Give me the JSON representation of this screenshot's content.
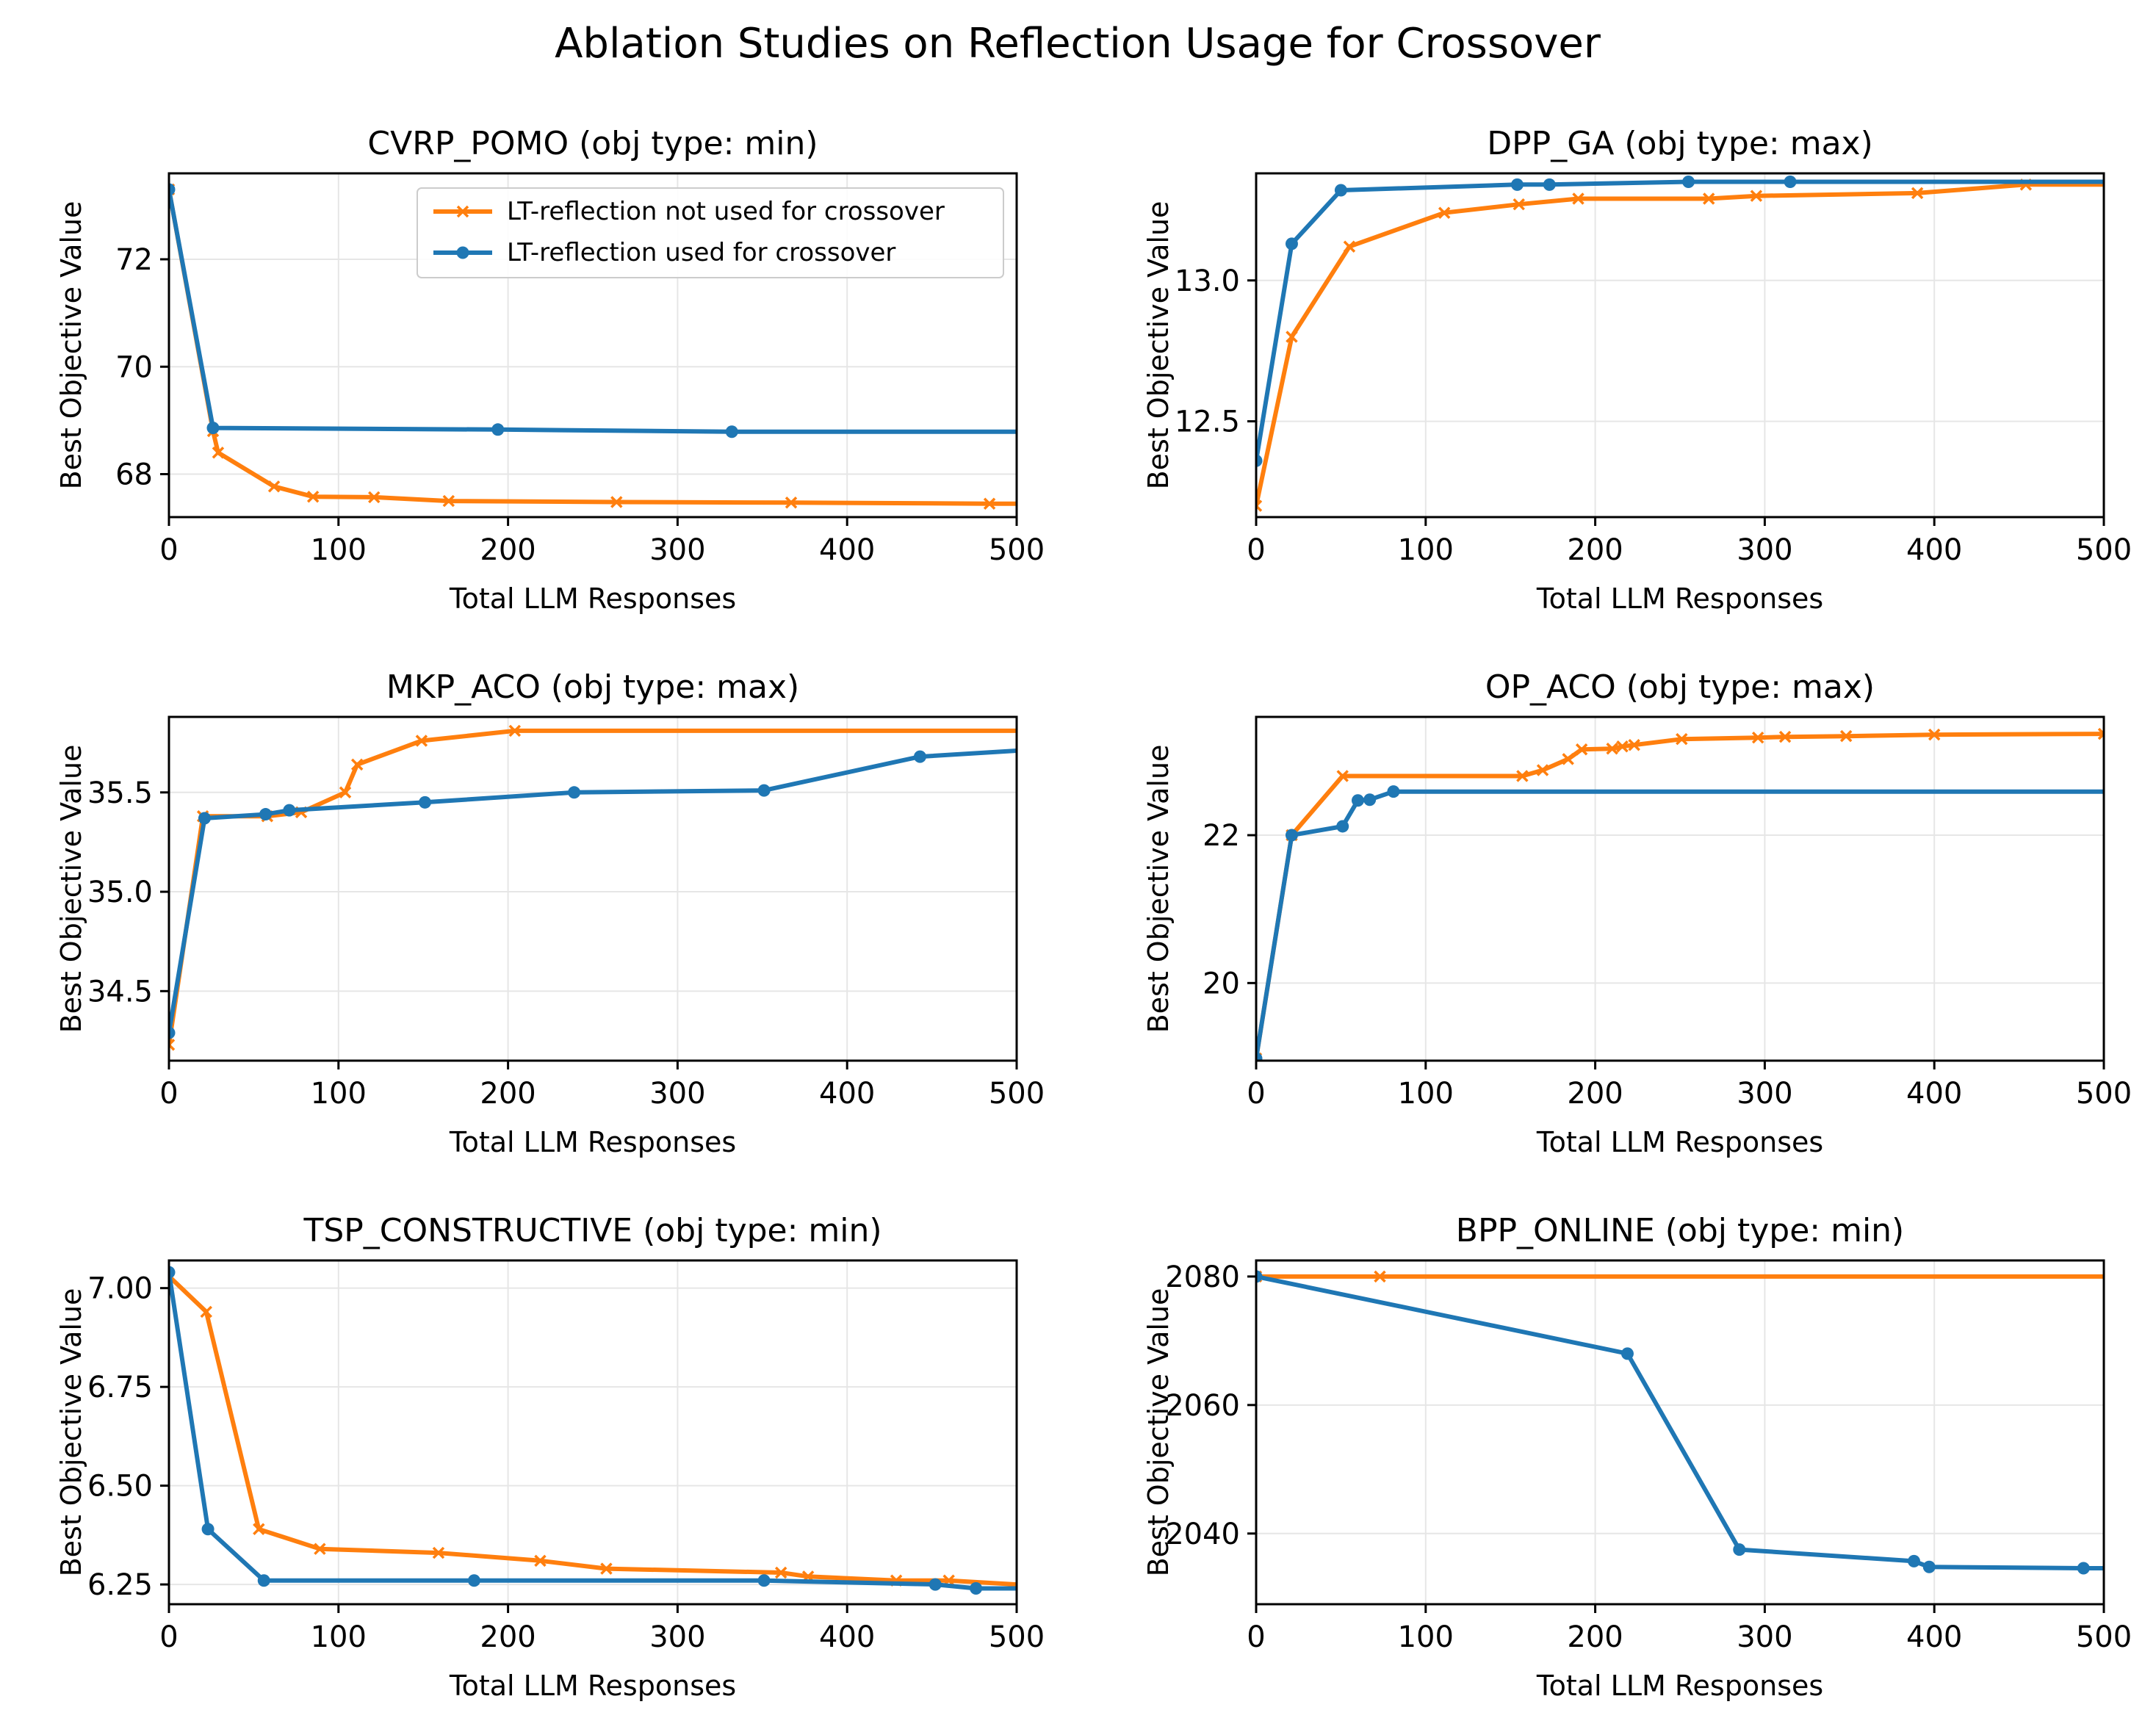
{
  "figure": {
    "title": "Ablation Studies on Reflection Usage for Crossover",
    "legend": {
      "placement": "upper-right of first panel",
      "entries": [
        {
          "label": "LT-reflection not used for crossover",
          "color": "#ff7f0e",
          "marker": "x"
        },
        {
          "label": "LT-reflection used for crossover",
          "color": "#1f77b4",
          "marker": "o"
        }
      ]
    },
    "colors": {
      "not_used": "#ff7f0e",
      "used": "#1f77b4",
      "grid": "#e6e6e6"
    }
  },
  "chart_data": [
    {
      "type": "line",
      "title": "CVRP_POMO (obj type: min)",
      "xlabel": "Total LLM Responses",
      "ylabel": "Best Objective Value",
      "xlim": [
        0,
        500
      ],
      "ylim": [
        67.2,
        73.6
      ],
      "xticks": [
        0,
        100,
        200,
        300,
        400,
        500
      ],
      "yticks": [
        68,
        70,
        72
      ],
      "ytick_labels": [
        "68",
        "70",
        "72"
      ],
      "grid": true,
      "series": [
        {
          "name": "LT-reflection not used for crossover",
          "color": "#ff7f0e",
          "marker": "x",
          "x": [
            0,
            26,
            29,
            62,
            85,
            121,
            165,
            264,
            367,
            484,
            500
          ],
          "y": [
            73.3,
            68.8,
            68.4,
            67.77,
            67.58,
            67.57,
            67.5,
            67.48,
            67.47,
            67.45,
            67.45
          ],
          "markers_x": [
            0,
            26,
            29,
            62,
            85,
            121,
            165,
            264,
            367,
            484
          ]
        },
        {
          "name": "LT-reflection used for crossover",
          "color": "#1f77b4",
          "marker": "o",
          "x": [
            0,
            26,
            194,
            332,
            500
          ],
          "y": [
            73.3,
            68.86,
            68.83,
            68.79,
            68.79
          ],
          "markers_x": [
            0,
            26,
            194,
            332
          ]
        }
      ]
    },
    {
      "type": "line",
      "title": "DPP_GA (obj type: max)",
      "xlabel": "Total LLM Responses",
      "ylabel": "Best Objective Value",
      "xlim": [
        0,
        500
      ],
      "ylim": [
        12.16,
        13.38
      ],
      "xticks": [
        0,
        100,
        200,
        300,
        400,
        500
      ],
      "yticks": [
        12.5,
        13.0
      ],
      "ytick_labels": [
        "12.5",
        "13.0"
      ],
      "grid": true,
      "series": [
        {
          "name": "LT-reflection not used for crossover",
          "color": "#ff7f0e",
          "marker": "x",
          "x": [
            0,
            21,
            55,
            111,
            155,
            190,
            267,
            295,
            390,
            454,
            500
          ],
          "y": [
            12.2,
            12.8,
            13.12,
            13.24,
            13.27,
            13.29,
            13.29,
            13.3,
            13.31,
            13.34,
            13.34
          ],
          "markers_x": [
            0,
            21,
            55,
            111,
            155,
            190,
            267,
            295,
            390,
            454
          ]
        },
        {
          "name": "LT-reflection used for crossover",
          "color": "#1f77b4",
          "marker": "o",
          "x": [
            0,
            21,
            50,
            154,
            173,
            255,
            315,
            500
          ],
          "y": [
            12.36,
            13.13,
            13.32,
            13.34,
            13.34,
            13.35,
            13.35,
            13.35
          ],
          "markers_x": [
            0,
            21,
            50,
            154,
            173,
            255,
            315
          ]
        }
      ]
    },
    {
      "type": "line",
      "title": "MKP_ACO (obj type: max)",
      "xlabel": "Total LLM Responses",
      "ylabel": "Best Objective Value",
      "xlim": [
        0,
        500
      ],
      "ylim": [
        34.15,
        35.88
      ],
      "xticks": [
        0,
        100,
        200,
        300,
        400,
        500
      ],
      "yticks": [
        34.5,
        35.0,
        35.5
      ],
      "ytick_labels": [
        "34.5",
        "35.0",
        "35.5"
      ],
      "grid": true,
      "series": [
        {
          "name": "LT-reflection not used for crossover",
          "color": "#ff7f0e",
          "marker": "x",
          "x": [
            0,
            20,
            58,
            78,
            104,
            111,
            149,
            204,
            500
          ],
          "y": [
            34.23,
            35.38,
            35.38,
            35.4,
            35.5,
            35.64,
            35.76,
            35.81,
            35.81
          ],
          "markers_x": [
            0,
            20,
            58,
            78,
            104,
            111,
            149,
            204
          ]
        },
        {
          "name": "LT-reflection used for crossover",
          "color": "#1f77b4",
          "marker": "o",
          "x": [
            0,
            21,
            57,
            71,
            151,
            239,
            351,
            443,
            500
          ],
          "y": [
            34.29,
            35.37,
            35.39,
            35.41,
            35.45,
            35.5,
            35.51,
            35.68,
            35.71
          ],
          "markers_x": [
            0,
            21,
            57,
            71,
            151,
            239,
            351,
            443
          ]
        }
      ]
    },
    {
      "type": "line",
      "title": "OP_ACO (obj type: max)",
      "xlabel": "Total LLM Responses",
      "ylabel": "Best Objective Value",
      "xlim": [
        0,
        500
      ],
      "ylim": [
        18.95,
        23.6
      ],
      "xticks": [
        0,
        100,
        200,
        300,
        400,
        500
      ],
      "yticks": [
        20,
        22
      ],
      "ytick_labels": [
        "20",
        "22"
      ],
      "grid": true,
      "series": [
        {
          "name": "LT-reflection not used for crossover",
          "color": "#ff7f0e",
          "marker": "x",
          "x": [
            0,
            21,
            51,
            157,
            169,
            184,
            192,
            210,
            216,
            223,
            251,
            296,
            312,
            348,
            400,
            500
          ],
          "y": [
            18.98,
            22.0,
            22.8,
            22.8,
            22.88,
            23.03,
            23.16,
            23.17,
            23.2,
            23.22,
            23.3,
            23.32,
            23.33,
            23.34,
            23.36,
            23.37
          ],
          "markers_x": [
            0,
            21,
            51,
            157,
            169,
            184,
            192,
            210,
            216,
            223,
            251,
            296,
            312,
            348,
            400,
            500
          ]
        },
        {
          "name": "LT-reflection used for crossover",
          "color": "#1f77b4",
          "marker": "o",
          "x": [
            0,
            21,
            51,
            60,
            67,
            81,
            500
          ],
          "y": [
            18.98,
            22.0,
            22.12,
            22.47,
            22.48,
            22.59,
            22.59
          ],
          "markers_x": [
            0,
            21,
            51,
            60,
            67,
            81
          ]
        }
      ]
    },
    {
      "type": "line",
      "title": "TSP_CONSTRUCTIVE (obj type: min)",
      "xlabel": "Total LLM Responses",
      "ylabel": "Best Objective Value",
      "xlim": [
        0,
        500
      ],
      "ylim": [
        6.2,
        7.07
      ],
      "xticks": [
        0,
        100,
        200,
        300,
        400,
        500
      ],
      "yticks": [
        6.25,
        6.5,
        6.75,
        7.0
      ],
      "ytick_labels": [
        "6.25",
        "6.50",
        "6.75",
        "7.00"
      ],
      "grid": true,
      "series": [
        {
          "name": "LT-reflection not used for crossover",
          "color": "#ff7f0e",
          "marker": "x",
          "x": [
            0,
            22,
            53,
            89,
            159,
            219,
            258,
            361,
            377,
            429,
            460,
            500
          ],
          "y": [
            7.03,
            6.94,
            6.39,
            6.34,
            6.33,
            6.31,
            6.29,
            6.28,
            6.27,
            6.26,
            6.26,
            6.25
          ],
          "markers_x": [
            0,
            22,
            53,
            89,
            159,
            219,
            258,
            361,
            377,
            429,
            460
          ]
        },
        {
          "name": "LT-reflection used for crossover",
          "color": "#1f77b4",
          "marker": "o",
          "x": [
            0,
            23,
            56,
            180,
            351,
            452,
            476,
            500
          ],
          "y": [
            7.04,
            6.39,
            6.26,
            6.26,
            6.26,
            6.25,
            6.24,
            6.24
          ],
          "markers_x": [
            0,
            23,
            56,
            180,
            351,
            452,
            476
          ]
        }
      ]
    },
    {
      "type": "line",
      "title": "BPP_ONLINE (obj type: min)",
      "xlabel": "Total LLM Responses",
      "ylabel": "Best Objective Value",
      "xlim": [
        0,
        500
      ],
      "ylim": [
        2029,
        2082.5
      ],
      "xticks": [
        0,
        100,
        200,
        300,
        400,
        500
      ],
      "yticks": [
        2040,
        2060,
        2080
      ],
      "ytick_labels": [
        "2040",
        "2060",
        "2080"
      ],
      "grid": true,
      "series": [
        {
          "name": "LT-reflection not used for crossover",
          "color": "#ff7f0e",
          "marker": "x",
          "x": [
            0,
            73,
            500
          ],
          "y": [
            2080,
            2080,
            2080
          ],
          "markers_x": [
            0,
            73
          ]
        },
        {
          "name": "LT-reflection used for crossover",
          "color": "#1f77b4",
          "marker": "o",
          "x": [
            0,
            219,
            285,
            388,
            397,
            488,
            500
          ],
          "y": [
            2080,
            2068,
            2037.5,
            2035.7,
            2034.8,
            2034.6,
            2034.6
          ],
          "markers_x": [
            0,
            219,
            285,
            388,
            397,
            488
          ]
        }
      ]
    }
  ]
}
